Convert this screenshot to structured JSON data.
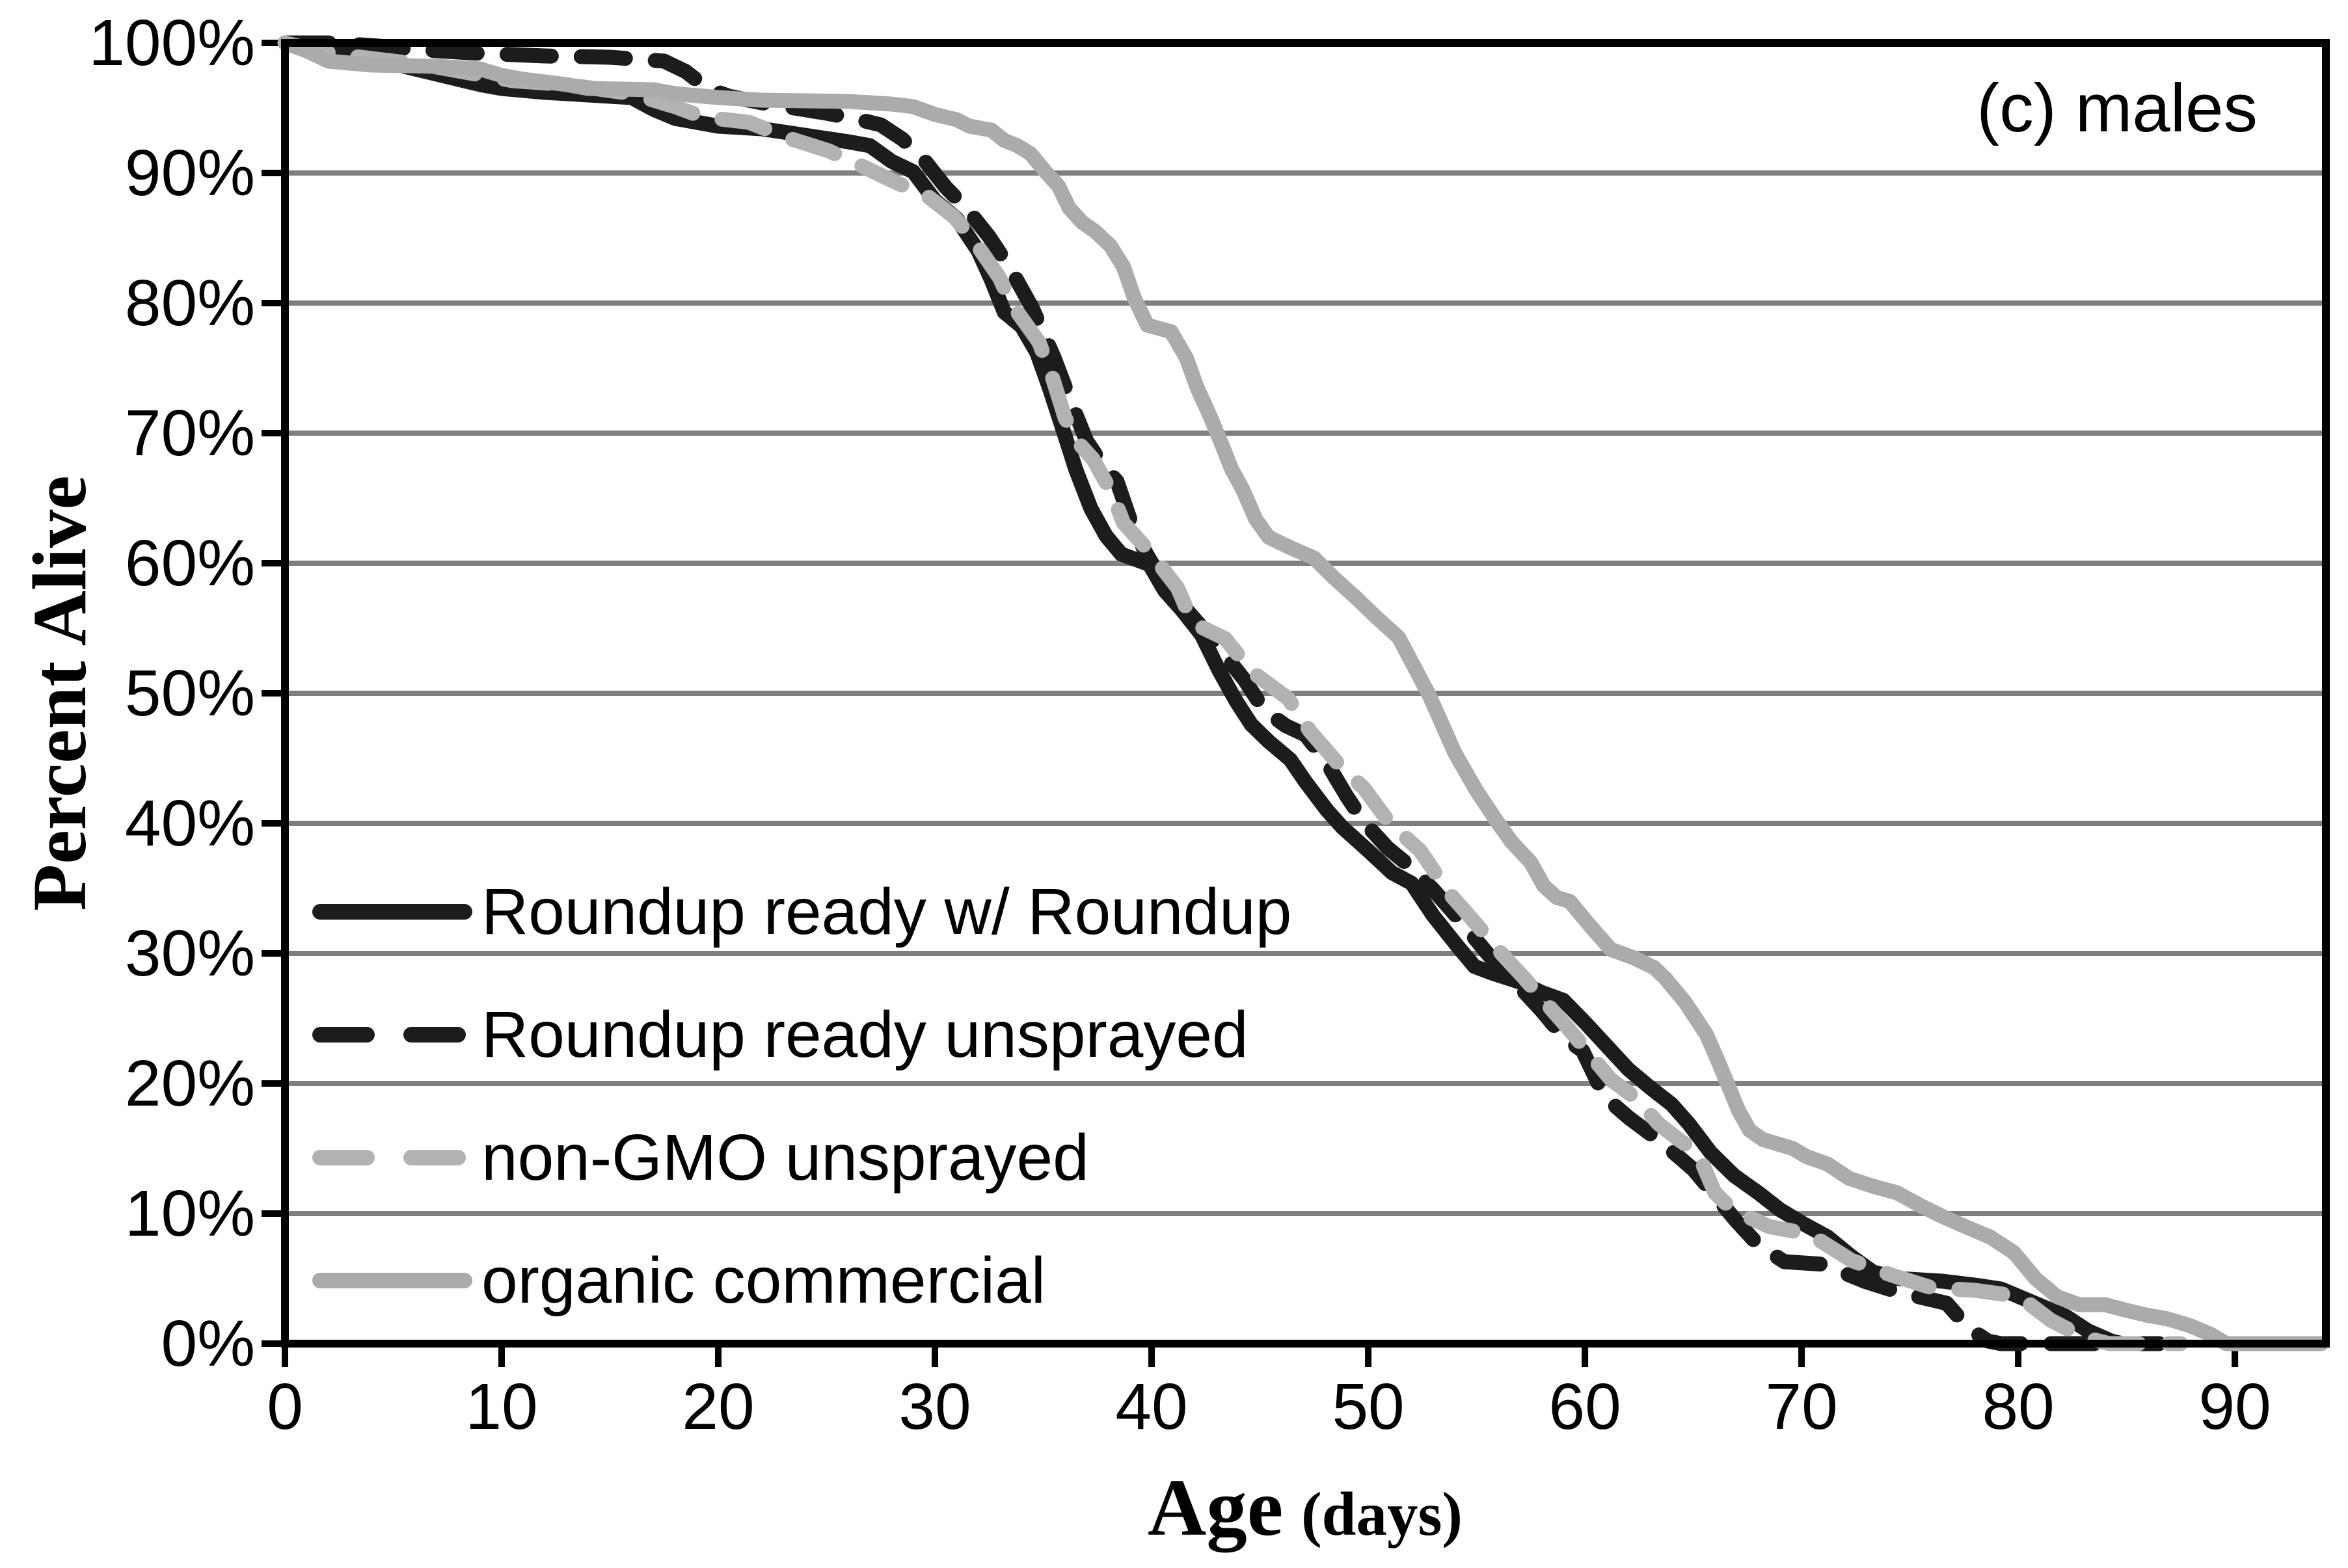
{
  "figure": {
    "annotation": "(c) males",
    "x_axis_title_main": "Age",
    "x_axis_title_unit": "(days)",
    "y_axis_title": "Percent Alive"
  },
  "chart_data": {
    "type": "line",
    "subtype": "survival-curves",
    "title": "(c) males",
    "xlabel": "Age (days)",
    "ylabel": "Percent Alive",
    "xlim": [
      0,
      94.2
    ],
    "ylim": [
      0,
      100
    ],
    "x_ticks": [
      0,
      10,
      20,
      30,
      40,
      50,
      60,
      70,
      80,
      90
    ],
    "y_ticks": [
      {
        "value": 0,
        "label": "0%"
      },
      {
        "value": 10,
        "label": "10%"
      },
      {
        "value": 20,
        "label": "20%"
      },
      {
        "value": 30,
        "label": "30%"
      },
      {
        "value": 40,
        "label": "40%"
      },
      {
        "value": 50,
        "label": "50%"
      },
      {
        "value": 60,
        "label": "60%"
      },
      {
        "value": 70,
        "label": "70%"
      },
      {
        "value": 80,
        "label": "80%"
      },
      {
        "value": 90,
        "label": "90%"
      },
      {
        "value": 100,
        "label": "100%"
      }
    ],
    "grid": "horizontal",
    "gridline_color": "#7f7f7f",
    "axis_color": "#000000",
    "legend_position": "inside-lower-left",
    "series": [
      {
        "name": "Roundup ready w/ Roundup",
        "style": "solid",
        "color": "#1c1c1c",
        "points": [
          [
            0,
            100
          ],
          [
            1,
            99.6
          ],
          [
            3,
            99.2
          ],
          [
            5,
            98.4
          ],
          [
            7,
            97.6
          ],
          [
            8,
            97.2
          ],
          [
            9,
            96.8
          ],
          [
            10,
            96.5
          ],
          [
            12,
            96.2
          ],
          [
            14,
            96.0
          ],
          [
            16,
            95.8
          ],
          [
            17,
            94.9
          ],
          [
            18,
            94.2
          ],
          [
            20,
            93.6
          ],
          [
            22,
            93.4
          ],
          [
            24,
            92.9
          ],
          [
            26,
            92.4
          ],
          [
            27,
            92.1
          ],
          [
            28,
            90.9
          ],
          [
            29,
            90.1
          ],
          [
            30,
            87.9
          ],
          [
            31,
            86.5
          ],
          [
            32,
            84.0
          ],
          [
            32.6,
            81.8
          ],
          [
            33.2,
            79.3
          ],
          [
            34,
            78.2
          ],
          [
            34.7,
            76.2
          ],
          [
            35.3,
            73.4
          ],
          [
            36,
            69.8
          ],
          [
            36.5,
            67.2
          ],
          [
            37.2,
            64.2
          ],
          [
            37.9,
            62.1
          ],
          [
            38.6,
            60.7
          ],
          [
            39.9,
            59.9
          ],
          [
            40.6,
            57.9
          ],
          [
            41.4,
            56.4
          ],
          [
            42.3,
            54.5
          ],
          [
            43.1,
            51.8
          ],
          [
            43.9,
            49.4
          ],
          [
            44.6,
            47.6
          ],
          [
            45.4,
            46.3
          ],
          [
            46.4,
            44.9
          ],
          [
            47.1,
            43.2
          ],
          [
            48.1,
            41.0
          ],
          [
            48.8,
            39.7
          ],
          [
            50,
            37.9
          ],
          [
            51.1,
            36.2
          ],
          [
            52,
            35.4
          ],
          [
            53,
            32.9
          ],
          [
            54.1,
            30.6
          ],
          [
            54.9,
            29.0
          ],
          [
            55.7,
            28.5
          ],
          [
            57,
            27.8
          ],
          [
            58,
            27.0
          ],
          [
            59,
            26.4
          ],
          [
            60,
            24.7
          ],
          [
            61,
            22.9
          ],
          [
            62,
            21.1
          ],
          [
            63,
            19.7
          ],
          [
            64,
            18.4
          ],
          [
            64.8,
            16.9
          ],
          [
            65.8,
            14.7
          ],
          [
            66.9,
            12.9
          ],
          [
            68,
            11.6
          ],
          [
            69,
            10.3
          ],
          [
            70.1,
            9.2
          ],
          [
            71.2,
            8.2
          ],
          [
            72.3,
            6.7
          ],
          [
            73.3,
            5.5
          ],
          [
            74.5,
            5.0
          ],
          [
            76.5,
            4.8
          ],
          [
            78,
            4.5
          ],
          [
            79.2,
            4.2
          ],
          [
            80.2,
            3.5
          ],
          [
            81.2,
            2.8
          ],
          [
            82.2,
            2.1
          ],
          [
            83.2,
            1.0
          ],
          [
            84.3,
            0.2
          ],
          [
            84.8,
            0
          ],
          [
            86.5,
            0
          ]
        ]
      },
      {
        "name": "Roundup ready unsprayed",
        "style": "dashed",
        "color": "#1c1c1c",
        "points": [
          [
            0,
            100
          ],
          [
            2,
            100
          ],
          [
            4,
            99.8
          ],
          [
            6,
            99.5
          ],
          [
            9,
            99.2
          ],
          [
            12,
            99.0
          ],
          [
            15,
            98.9
          ],
          [
            17.5,
            98.6
          ],
          [
            18.5,
            97.8
          ],
          [
            19.5,
            96.5
          ],
          [
            20.5,
            95.9
          ],
          [
            22,
            95.4
          ],
          [
            23.5,
            95.0
          ],
          [
            25,
            94.6
          ],
          [
            26.5,
            94.1
          ],
          [
            27.5,
            93.7
          ],
          [
            28.5,
            92.6
          ],
          [
            29.5,
            91.0
          ],
          [
            30.5,
            88.9
          ],
          [
            31.5,
            87.2
          ],
          [
            32.5,
            85.1
          ],
          [
            33.5,
            82.6
          ],
          [
            34.5,
            79.6
          ],
          [
            35.5,
            75.8
          ],
          [
            36.3,
            72.3
          ],
          [
            37,
            69.4
          ],
          [
            37.8,
            67.4
          ],
          [
            38.4,
            66.3
          ],
          [
            39,
            63.4
          ],
          [
            39.7,
            60.9
          ],
          [
            40.4,
            58.9
          ],
          [
            41.2,
            57.2
          ],
          [
            42.2,
            55.3
          ],
          [
            43.3,
            53.1
          ],
          [
            44.3,
            51.0
          ],
          [
            45.2,
            48.7
          ],
          [
            46.2,
            47.5
          ],
          [
            47.1,
            46.8
          ],
          [
            48,
            44.9
          ],
          [
            49,
            42.1
          ],
          [
            49.8,
            40.1
          ],
          [
            50.9,
            38.1
          ],
          [
            52,
            36.6
          ],
          [
            53,
            34.9
          ],
          [
            54,
            33.0
          ],
          [
            55,
            31.0
          ],
          [
            56,
            29.0
          ],
          [
            57,
            27.4
          ],
          [
            58,
            25.6
          ],
          [
            59,
            23.6
          ],
          [
            59.9,
            22.5
          ],
          [
            60.9,
            19.0
          ],
          [
            62,
            17.4
          ],
          [
            63.6,
            15.4
          ],
          [
            65,
            13.4
          ],
          [
            66,
            11.4
          ],
          [
            67,
            9.4
          ],
          [
            68,
            7.6
          ],
          [
            69.2,
            6.3
          ],
          [
            71,
            6.1
          ],
          [
            72.9,
            4.8
          ],
          [
            74.4,
            4.0
          ],
          [
            76.7,
            3.1
          ],
          [
            77.7,
            1.2
          ],
          [
            78.6,
            0.2
          ],
          [
            79.2,
            0
          ],
          [
            83.5,
            0
          ]
        ]
      },
      {
        "name": "non-GMO unsprayed",
        "style": "dashed",
        "color": "#b2b2b2",
        "points": [
          [
            0,
            100
          ],
          [
            1,
            99.6
          ],
          [
            2.5,
            99.1
          ],
          [
            4.5,
            98.7
          ],
          [
            6.5,
            98.3
          ],
          [
            8.5,
            97.7
          ],
          [
            10.5,
            97.1
          ],
          [
            13,
            96.8
          ],
          [
            16,
            96.1
          ],
          [
            18,
            95.1
          ],
          [
            19.3,
            94.3
          ],
          [
            21.4,
            93.9
          ],
          [
            23.4,
            92.6
          ],
          [
            25.1,
            91.7
          ],
          [
            26.3,
            90.8
          ],
          [
            28.3,
            89.2
          ],
          [
            29.6,
            88.3
          ],
          [
            30.9,
            86.6
          ],
          [
            31.8,
            84.8
          ],
          [
            33,
            81.9
          ],
          [
            33.5,
            80.0
          ],
          [
            34.2,
            78.4
          ],
          [
            34.8,
            77.0
          ],
          [
            35.4,
            74.4
          ],
          [
            36,
            71.2
          ],
          [
            36.6,
            69.3
          ],
          [
            37.3,
            68.0
          ],
          [
            38.2,
            65.3
          ],
          [
            38.7,
            63.1
          ],
          [
            39.9,
            60.9
          ],
          [
            41.2,
            58.1
          ],
          [
            41.9,
            55.4
          ],
          [
            43.4,
            54.2
          ],
          [
            44.6,
            51.7
          ],
          [
            46.3,
            49.6
          ],
          [
            47.3,
            47.1
          ],
          [
            48.6,
            44.6
          ],
          [
            49.8,
            42.7
          ],
          [
            51,
            40.0
          ],
          [
            52.4,
            37.9
          ],
          [
            53.7,
            34.7
          ],
          [
            54.7,
            32.8
          ],
          [
            56.2,
            29.9
          ],
          [
            57.2,
            28.1
          ],
          [
            58.2,
            26.2
          ],
          [
            59.2,
            24.3
          ],
          [
            60.2,
            22.3
          ],
          [
            61.2,
            20.3
          ],
          [
            62.4,
            18.8
          ],
          [
            63.4,
            16.9
          ],
          [
            64.4,
            15.6
          ],
          [
            65.2,
            14.7
          ],
          [
            66,
            11.6
          ],
          [
            66.8,
            10.3
          ],
          [
            68.5,
            9.0
          ],
          [
            70.4,
            8.4
          ],
          [
            72.3,
            6.4
          ],
          [
            74.1,
            5.3
          ],
          [
            76,
            4.3
          ],
          [
            78,
            4.1
          ],
          [
            79.3,
            3.8
          ],
          [
            80.4,
            3.2
          ],
          [
            81.5,
            1.8
          ],
          [
            83,
            0.5
          ],
          [
            84.2,
            0
          ],
          [
            87.5,
            0
          ]
        ]
      },
      {
        "name": "organic commercial",
        "style": "solid",
        "color": "#ababab",
        "points": [
          [
            0,
            100
          ],
          [
            1,
            99.4
          ],
          [
            2,
            98.6
          ],
          [
            4,
            98.3
          ],
          [
            7,
            98.2
          ],
          [
            9,
            98.0
          ],
          [
            10,
            97.5
          ],
          [
            11,
            97.2
          ],
          [
            13,
            96.8
          ],
          [
            14,
            96.5
          ],
          [
            17,
            96.4
          ],
          [
            18,
            96.1
          ],
          [
            20,
            95.8
          ],
          [
            22,
            95.6
          ],
          [
            26,
            95.5
          ],
          [
            28,
            95.3
          ],
          [
            29,
            95.1
          ],
          [
            30,
            94.5
          ],
          [
            31,
            94.1
          ],
          [
            31.6,
            93.6
          ],
          [
            32.6,
            93.3
          ],
          [
            33.2,
            92.5
          ],
          [
            33.8,
            92.1
          ],
          [
            34.4,
            91.5
          ],
          [
            35.1,
            90.1
          ],
          [
            35.7,
            89.0
          ],
          [
            36.2,
            87.3
          ],
          [
            36.8,
            86.2
          ],
          [
            37.4,
            85.5
          ],
          [
            38.1,
            84.4
          ],
          [
            38.7,
            82.8
          ],
          [
            39.2,
            80.4
          ],
          [
            39.8,
            78.3
          ],
          [
            40.9,
            77.8
          ],
          [
            41.6,
            75.8
          ],
          [
            42.1,
            73.5
          ],
          [
            42.7,
            71.3
          ],
          [
            43.2,
            69.3
          ],
          [
            43.7,
            67.2
          ],
          [
            44.2,
            65.7
          ],
          [
            44.8,
            63.4
          ],
          [
            45.4,
            62.0
          ],
          [
            46.4,
            61.2
          ],
          [
            47.5,
            60.4
          ],
          [
            48.4,
            58.9
          ],
          [
            49.4,
            57.4
          ],
          [
            50.4,
            55.8
          ],
          [
            51.4,
            54.3
          ],
          [
            52.2,
            51.8
          ],
          [
            52.8,
            49.9
          ],
          [
            54,
            45.4
          ],
          [
            55,
            42.5
          ],
          [
            56,
            40.0
          ],
          [
            56.6,
            38.6
          ],
          [
            57.5,
            37.0
          ],
          [
            58.1,
            35.2
          ],
          [
            58.7,
            34.3
          ],
          [
            59.3,
            34.0
          ],
          [
            60.2,
            32.2
          ],
          [
            61.2,
            30.3
          ],
          [
            62.2,
            29.7
          ],
          [
            63.2,
            28.9
          ],
          [
            63.7,
            28.1
          ],
          [
            64.6,
            26.3
          ],
          [
            65.6,
            23.8
          ],
          [
            66.1,
            21.9
          ],
          [
            66.6,
            19.9
          ],
          [
            67.1,
            17.9
          ],
          [
            67.6,
            16.4
          ],
          [
            68.2,
            15.7
          ],
          [
            69.6,
            15.0
          ],
          [
            70.2,
            14.4
          ],
          [
            71.2,
            13.8
          ],
          [
            72.2,
            12.7
          ],
          [
            73.3,
            12.1
          ],
          [
            74.4,
            11.6
          ],
          [
            75.5,
            10.6
          ],
          [
            76.6,
            9.7
          ],
          [
            77.7,
            8.9
          ],
          [
            78.7,
            8.2
          ],
          [
            79.8,
            7.0
          ],
          [
            80.8,
            5.0
          ],
          [
            81.8,
            3.6
          ],
          [
            82.8,
            3.0
          ],
          [
            84,
            3.0
          ],
          [
            84.9,
            2.6
          ],
          [
            85.9,
            2.2
          ],
          [
            86.9,
            1.9
          ],
          [
            87.9,
            1.4
          ],
          [
            88.9,
            0.7
          ],
          [
            89.6,
            0
          ],
          [
            94,
            0
          ]
        ]
      }
    ]
  }
}
